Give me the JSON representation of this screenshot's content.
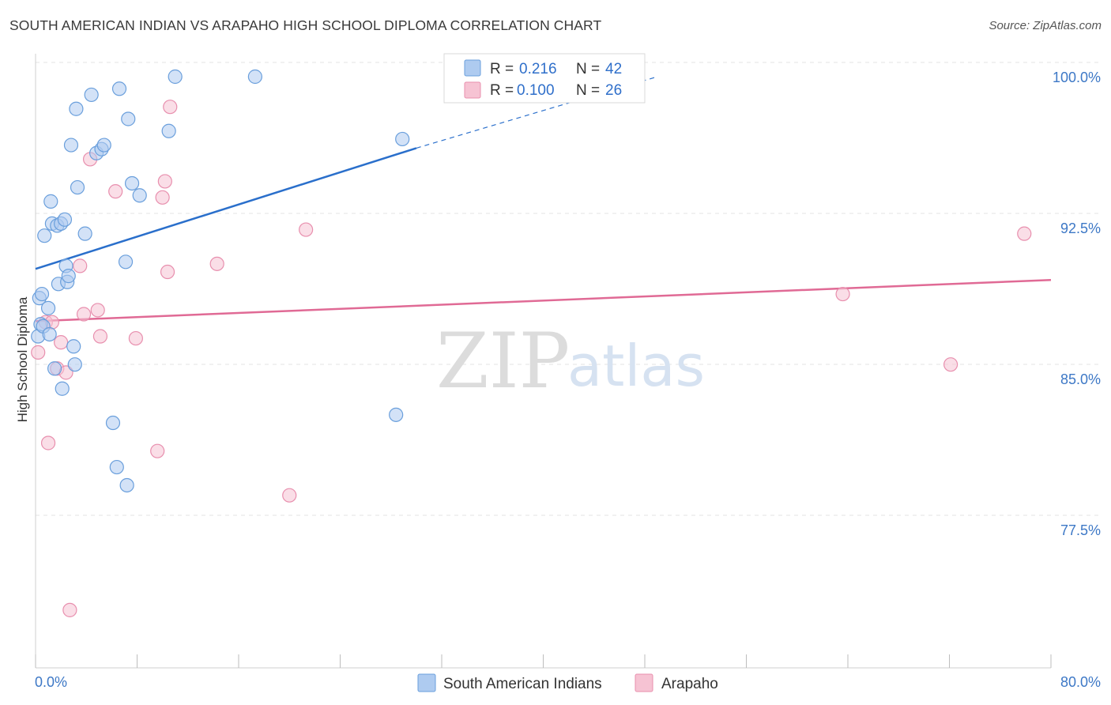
{
  "header": {
    "title": "SOUTH AMERICAN INDIAN VS ARAPAHO HIGH SCHOOL DIPLOMA CORRELATION CHART",
    "source": "Source: ZipAtlas.com"
  },
  "watermark": {
    "zip": "ZIP",
    "atlas": "atlas"
  },
  "legend": {
    "rows": [
      {
        "r_label": "R = ",
        "r_value": "0.216",
        "n_label": "N = ",
        "n_value": "42"
      },
      {
        "r_label": "R = ",
        "r_value": "0.100",
        "n_label": "N = ",
        "n_value": "26"
      }
    ]
  },
  "colors": {
    "blue_fill": "#aecbf0",
    "blue_stroke": "#6a9fdc",
    "blue_line": "#2a6fcb",
    "pink_fill": "#f6c3d3",
    "pink_stroke": "#e88fae",
    "pink_line": "#e06a95",
    "grid": "#e3e3e3",
    "axis_text": "#3d78c6"
  },
  "chart_data": {
    "type": "scatter",
    "title": "SOUTH AMERICAN INDIAN VS ARAPAHO HIGH SCHOOL DIPLOMA CORRELATION CHART",
    "xlabel": "",
    "ylabel": "High School Diploma",
    "xlim": [
      0,
      80
    ],
    "ylim": [
      70.8,
      100.6
    ],
    "x_tick_labels": [
      "0.0%",
      "80.0%"
    ],
    "y_ticks": [
      77.5,
      85.0,
      92.5,
      100.0
    ],
    "y_tick_labels": [
      "77.5%",
      "85.0%",
      "92.5%",
      "100.0%"
    ],
    "legend_position": "top-center",
    "series": [
      {
        "name": "South American Indians",
        "color": "#aecbf0",
        "points": [
          [
            0.2,
            87.1
          ],
          [
            0.3,
            89.0
          ],
          [
            0.4,
            87.7
          ],
          [
            0.5,
            89.2
          ],
          [
            0.6,
            87.6
          ],
          [
            0.7,
            92.1
          ],
          [
            1.0,
            88.5
          ],
          [
            1.1,
            87.2
          ],
          [
            1.2,
            93.8
          ],
          [
            1.3,
            92.7
          ],
          [
            1.5,
            85.5
          ],
          [
            1.7,
            92.6
          ],
          [
            1.8,
            89.7
          ],
          [
            2.0,
            92.7
          ],
          [
            2.1,
            84.5
          ],
          [
            2.3,
            92.9
          ],
          [
            2.4,
            90.6
          ],
          [
            2.5,
            89.8
          ],
          [
            2.6,
            90.1
          ],
          [
            2.8,
            96.6
          ],
          [
            3.0,
            86.6
          ],
          [
            3.1,
            85.7
          ],
          [
            3.2,
            98.4
          ],
          [
            3.3,
            94.5
          ],
          [
            3.9,
            92.2
          ],
          [
            4.4,
            99.1
          ],
          [
            4.8,
            96.2
          ],
          [
            5.2,
            96.4
          ],
          [
            5.4,
            96.6
          ],
          [
            6.1,
            82.8
          ],
          [
            6.4,
            80.6
          ],
          [
            6.6,
            99.4
          ],
          [
            7.1,
            90.8
          ],
          [
            7.2,
            79.7
          ],
          [
            7.3,
            97.9
          ],
          [
            7.6,
            94.7
          ],
          [
            8.2,
            94.1
          ],
          [
            10.5,
            97.3
          ],
          [
            11.0,
            100.0
          ],
          [
            17.3,
            100.0
          ],
          [
            28.4,
            83.2
          ],
          [
            28.9,
            96.9
          ]
        ]
      },
      {
        "name": "Arapaho",
        "color": "#f6c3d3",
        "points": [
          [
            0.2,
            86.3
          ],
          [
            0.8,
            87.8
          ],
          [
            1.0,
            81.8
          ],
          [
            1.3,
            87.8
          ],
          [
            1.7,
            85.5
          ],
          [
            2.0,
            86.8
          ],
          [
            2.4,
            85.3
          ],
          [
            2.7,
            73.5
          ],
          [
            3.5,
            90.6
          ],
          [
            3.8,
            88.2
          ],
          [
            4.3,
            95.9
          ],
          [
            4.9,
            88.4
          ],
          [
            5.1,
            87.1
          ],
          [
            6.3,
            94.3
          ],
          [
            7.9,
            87.0
          ],
          [
            9.6,
            81.4
          ],
          [
            10.0,
            94.0
          ],
          [
            10.2,
            94.8
          ],
          [
            10.4,
            90.3
          ],
          [
            10.6,
            98.5
          ],
          [
            14.3,
            90.7
          ],
          [
            20.0,
            79.2
          ],
          [
            21.3,
            92.4
          ],
          [
            63.6,
            89.2
          ],
          [
            72.1,
            85.7
          ],
          [
            77.9,
            92.2
          ]
        ]
      }
    ],
    "trendlines": [
      {
        "series": "South American Indians",
        "x": [
          0.0,
          30.0
        ],
        "y": [
          90.45,
          96.45
        ],
        "dashed_extension": {
          "x": [
            30.0,
            49.0
          ],
          "y": [
            96.45,
            100.0
          ]
        }
      },
      {
        "series": "Arapaho",
        "x": [
          0.0,
          80.0
        ],
        "y": [
          87.85,
          89.9
        ]
      }
    ]
  }
}
